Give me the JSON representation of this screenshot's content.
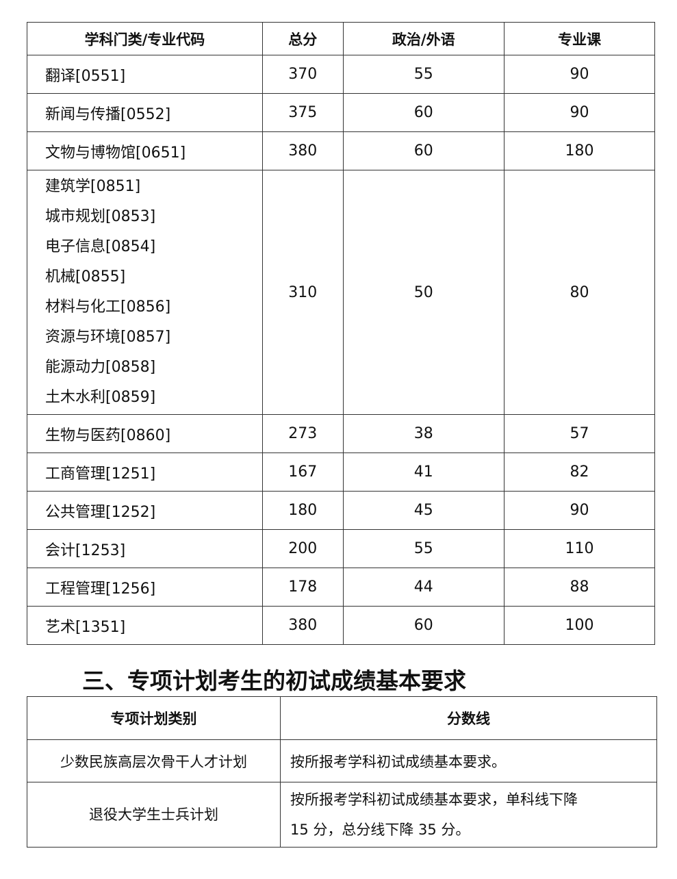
{
  "table1": {
    "headers": [
      "学科门类/专业代码",
      "总分",
      "政治/外语",
      "专业课"
    ],
    "rows": [
      {
        "names": [
          "翻译[0551]"
        ],
        "total": "370",
        "politics_language": "55",
        "major": "90"
      },
      {
        "names": [
          "新闻与传播[0552]"
        ],
        "total": "375",
        "politics_language": "60",
        "major": "90"
      },
      {
        "names": [
          "文物与博物馆[0651]"
        ],
        "total": "380",
        "politics_language": "60",
        "major": "180"
      },
      {
        "names": [
          "建筑学[0851]",
          "城市规划[0853]",
          "电子信息[0854]",
          "机械[0855]",
          "材料与化工[0856]",
          "资源与环境[0857]",
          "能源动力[0858]",
          "土木水利[0859]"
        ],
        "total": "310",
        "politics_language": "50",
        "major": "80"
      },
      {
        "names": [
          "生物与医药[0860]"
        ],
        "total": "273",
        "politics_language": "38",
        "major": "57"
      },
      {
        "names": [
          "工商管理[1251]"
        ],
        "total": "167",
        "politics_language": "41",
        "major": "82"
      },
      {
        "names": [
          "公共管理[1252]"
        ],
        "total": "180",
        "politics_language": "45",
        "major": "90"
      },
      {
        "names": [
          "会计[1253]"
        ],
        "total": "200",
        "politics_language": "55",
        "major": "110"
      },
      {
        "names": [
          "工程管理[1256]"
        ],
        "total": "178",
        "politics_language": "44",
        "major": "88"
      },
      {
        "names": [
          "艺术[1351]"
        ],
        "total": "380",
        "politics_language": "60",
        "major": "100"
      }
    ]
  },
  "section_heading": "三、专项计划考生的初试成绩基本要求",
  "table2": {
    "headers": [
      "专项计划类别",
      "分数线"
    ],
    "rows": [
      {
        "category": "少数民族高层次骨干人才计划",
        "requirement": [
          "按所报考学科初试成绩基本要求。"
        ]
      },
      {
        "category": "退役大学生士兵计划",
        "requirement": [
          "按所报考学科初试成绩基本要求，单科线下降",
          "15 分，总分线下降 35 分。"
        ]
      }
    ]
  }
}
